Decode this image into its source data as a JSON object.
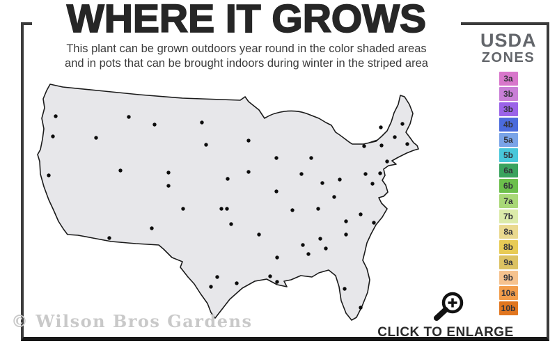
{
  "title": "WHERE IT GROWS",
  "subtitle": {
    "line1": "This plant can be grown outdoors year round in the color shaded areas",
    "line2": "and in pots that can be brought indoors during winter in the striped area"
  },
  "legend": {
    "heading_top": "USDA",
    "heading_bottom": "ZONES",
    "zones": [
      {
        "label": "3a",
        "color": "#d877cb"
      },
      {
        "label": "3b",
        "color": "#c97fd7"
      },
      {
        "label": "3b",
        "color": "#9b63e8"
      },
      {
        "label": "4b",
        "color": "#4b6bdc"
      },
      {
        "label": "5a",
        "color": "#7aa4e8"
      },
      {
        "label": "5b",
        "color": "#48c7da"
      },
      {
        "label": "6a",
        "color": "#3aa35e"
      },
      {
        "label": "6b",
        "color": "#6cbf4b"
      },
      {
        "label": "7a",
        "color": "#a9d877"
      },
      {
        "label": "7b",
        "color": "#dcebaa"
      },
      {
        "label": "8a",
        "color": "#ead98f"
      },
      {
        "label": "8b",
        "color": "#e8cb55"
      },
      {
        "label": "9a",
        "color": "#dcc263"
      },
      {
        "label": "9b",
        "color": "#f6c28e"
      },
      {
        "label": "10a",
        "color": "#f29d4b"
      },
      {
        "label": "10b",
        "color": "#e1761f"
      }
    ]
  },
  "watermark": "© Wilson Bros Gardens",
  "enlarge_button": {
    "label": "CLICK TO ENLARGE",
    "icon": "magnifier-plus-icon"
  }
}
